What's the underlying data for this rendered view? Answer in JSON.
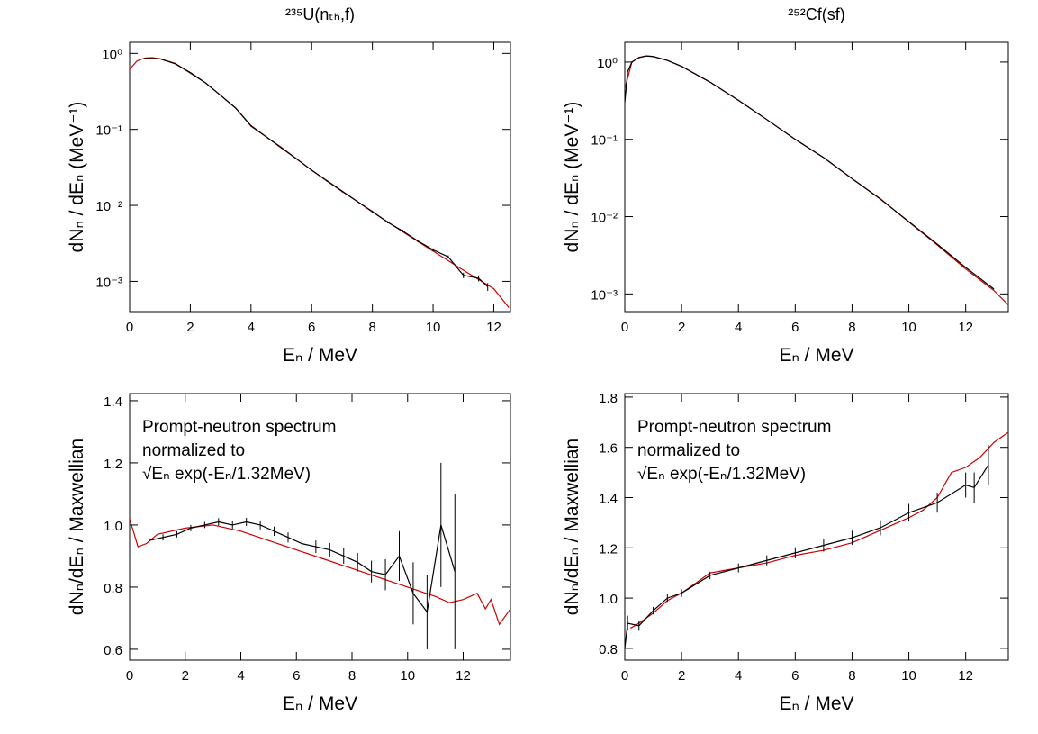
{
  "chart_data": [
    {
      "type": "line",
      "title": "²³⁵U(nₜₕ,f)",
      "xlabel": "Eₙ / MeV",
      "ylabel": "dNₙ / dEₙ (MeV⁻¹)",
      "log_y": true,
      "xlim": [
        0,
        12.55
      ],
      "xticks": [
        0,
        2,
        4,
        6,
        8,
        10,
        12
      ],
      "ylim": [
        0.0004,
        1.4
      ],
      "yticks": [
        {
          "value": 1,
          "label": "10⁰"
        },
        {
          "value": 0.1,
          "label": "10⁻¹"
        },
        {
          "value": 0.01,
          "label": "10⁻²"
        },
        {
          "value": 0.001,
          "label": "10⁻³"
        }
      ],
      "series": [
        {
          "color": "#cc0000",
          "x": [
            0,
            0.25,
            0.5,
            0.75,
            1,
            1.5,
            2,
            2.5,
            3,
            3.5,
            4,
            5,
            6,
            7,
            8,
            9,
            10,
            11,
            12,
            12.5
          ],
          "values": [
            0.62,
            0.8,
            0.87,
            0.88,
            0.85,
            0.74,
            0.55,
            0.41,
            0.28,
            0.19,
            0.11,
            0.058,
            0.029,
            0.0155,
            0.0082,
            0.0045,
            0.0025,
            0.0014,
            0.0008,
            0.00045
          ]
        },
        {
          "color": "#000000",
          "x": [
            0.5,
            1,
            1.5,
            2,
            2.5,
            3,
            3.5,
            4,
            4.5,
            5,
            5.5,
            6,
            6.5,
            7,
            7.5,
            8,
            8.5,
            9,
            9.5,
            10,
            10.5,
            11,
            11.5,
            11.8
          ],
          "values": [
            0.86,
            0.85,
            0.73,
            0.56,
            0.41,
            0.28,
            0.19,
            0.112,
            0.08,
            0.057,
            0.041,
            0.029,
            0.021,
            0.0153,
            0.0113,
            0.0083,
            0.006,
            0.0046,
            0.0034,
            0.0026,
            0.0021,
            0.0012,
            0.0011,
            0.00085
          ],
          "errors": [
            0.01,
            0.01,
            0.008,
            0.006,
            0.005,
            0.004,
            0.003,
            0.002,
            0.0015,
            0.0011,
            0.0008,
            0.0006,
            0.0005,
            0.0004,
            0.0003,
            0.00025,
            0.0002,
            0.00017,
            0.00014,
            0.00012,
            0.0001,
            0.0001,
            0.0001,
            0.0001
          ]
        }
      ]
    },
    {
      "type": "line",
      "title": "²⁵²Cf(sf)",
      "xlabel": "Eₙ / MeV",
      "ylabel": "dNₙ / dEₙ (MeV⁻¹)",
      "log_y": true,
      "xlim": [
        0,
        13.5
      ],
      "xticks": [
        0,
        2,
        4,
        6,
        8,
        10,
        12
      ],
      "ylim": [
        0.00059,
        1.8
      ],
      "yticks": [
        {
          "value": 1,
          "label": "10⁰"
        },
        {
          "value": 0.1,
          "label": "10⁻¹"
        },
        {
          "value": 0.01,
          "label": "10⁻²"
        },
        {
          "value": 0.001,
          "label": "10⁻³"
        }
      ],
      "series": [
        {
          "color": "#cc0000",
          "x": [
            0,
            0.25,
            0.5,
            0.75,
            1,
            1.5,
            2,
            3,
            4,
            5,
            6,
            7,
            8,
            9,
            10,
            11,
            12,
            13,
            13.5
          ],
          "values": [
            0.45,
            1.0,
            1.15,
            1.2,
            1.18,
            1.05,
            0.88,
            0.55,
            0.32,
            0.18,
            0.1,
            0.058,
            0.031,
            0.017,
            0.0085,
            0.0043,
            0.0021,
            0.0011,
            0.00072
          ]
        },
        {
          "color": "#000000",
          "x": [
            0,
            0.1,
            0.25,
            0.5,
            0.75,
            1,
            1.5,
            2,
            3,
            4,
            5,
            6,
            7,
            8,
            9,
            10,
            11,
            12,
            13
          ],
          "values": [
            0.3,
            0.75,
            1.0,
            1.14,
            1.2,
            1.18,
            1.05,
            0.88,
            0.55,
            0.32,
            0.18,
            0.1,
            0.058,
            0.031,
            0.0168,
            0.0086,
            0.0044,
            0.0022,
            0.00115
          ]
        }
      ]
    },
    {
      "type": "line",
      "xlabel": "Eₙ / MeV",
      "ylabel": "dNₙ/dEₙ / Maxwellian",
      "log_y": false,
      "annotation": [
        "Prompt-neutron spectrum",
        "normalized to",
        "√Eₙ exp(-Eₙ/1.32MeV)"
      ],
      "xlim": [
        0,
        13.7
      ],
      "xticks": [
        0,
        2,
        4,
        6,
        8,
        10,
        12
      ],
      "ylim": [
        0.565,
        1.423
      ],
      "yticks": [
        {
          "value": 0.6,
          "label": "0.6"
        },
        {
          "value": 0.8,
          "label": "0.8"
        },
        {
          "value": 1,
          "label": "1.0"
        },
        {
          "value": 1.2,
          "label": "1.2"
        },
        {
          "value": 1.4,
          "label": "1.4"
        }
      ],
      "series": [
        {
          "color": "#cc0000",
          "x": [
            0,
            0.3,
            0.6,
            1,
            2,
            3,
            4,
            5,
            6,
            7,
            8,
            9,
            10,
            11,
            11.5,
            12,
            12.5,
            12.8,
            13,
            13.3,
            13.7
          ],
          "values": [
            1.02,
            0.93,
            0.94,
            0.97,
            0.99,
            1.0,
            0.98,
            0.95,
            0.92,
            0.89,
            0.86,
            0.83,
            0.8,
            0.77,
            0.75,
            0.76,
            0.78,
            0.73,
            0.76,
            0.68,
            0.73
          ]
        },
        {
          "color": "#000000",
          "x": [
            0.7,
            1.2,
            1.7,
            2.2,
            2.7,
            3.2,
            3.7,
            4.2,
            4.7,
            5.2,
            5.7,
            6.2,
            6.7,
            7.2,
            7.7,
            8.2,
            8.7,
            9.2,
            9.7,
            10.2,
            10.7,
            11.2,
            11.7
          ],
          "values": [
            0.95,
            0.96,
            0.97,
            0.99,
            1.0,
            1.01,
            1.0,
            1.01,
            1.0,
            0.98,
            0.96,
            0.94,
            0.93,
            0.92,
            0.9,
            0.88,
            0.85,
            0.84,
            0.9,
            0.78,
            0.72,
            1.0,
            0.85
          ],
          "errors": [
            0.01,
            0.01,
            0.01,
            0.01,
            0.01,
            0.012,
            0.012,
            0.013,
            0.014,
            0.015,
            0.016,
            0.018,
            0.02,
            0.022,
            0.025,
            0.03,
            0.035,
            0.05,
            0.08,
            0.1,
            0.12,
            0.2,
            0.25
          ]
        }
      ]
    },
    {
      "type": "line",
      "xlabel": "Eₙ / MeV",
      "ylabel": "dNₙ/dEₙ / Maxwellian",
      "log_y": false,
      "annotation": [
        "Prompt-neutron spectrum",
        "normalized to",
        "√Eₙ exp(-Eₙ/1.32MeV)"
      ],
      "xlim": [
        0,
        13.5
      ],
      "xticks": [
        0,
        2,
        4,
        6,
        8,
        10,
        12
      ],
      "ylim": [
        0.753,
        1.814
      ],
      "yticks": [
        {
          "value": 0.8,
          "label": "0.8"
        },
        {
          "value": 1,
          "label": "1.0"
        },
        {
          "value": 1.2,
          "label": "1.2"
        },
        {
          "value": 1.4,
          "label": "1.4"
        },
        {
          "value": 1.6,
          "label": "1.6"
        },
        {
          "value": 1.8,
          "label": "1.8"
        }
      ],
      "series": [
        {
          "color": "#cc0000",
          "x": [
            0.2,
            0.5,
            1,
            1.5,
            2,
            2.5,
            3,
            3.5,
            4,
            5,
            6,
            7,
            8,
            9,
            10,
            10.5,
            11,
            11.5,
            12,
            12.5,
            13,
            13.5
          ],
          "values": [
            0.88,
            0.9,
            0.94,
            0.99,
            1.02,
            1.06,
            1.1,
            1.11,
            1.12,
            1.14,
            1.17,
            1.19,
            1.22,
            1.27,
            1.32,
            1.35,
            1.4,
            1.5,
            1.52,
            1.56,
            1.62,
            1.66
          ]
        },
        {
          "color": "#000000",
          "x": [
            0,
            0.1,
            0.5,
            1,
            1.5,
            2,
            3,
            4,
            5,
            6,
            7,
            8,
            9,
            10,
            11,
            12,
            12.3,
            12.8
          ],
          "values": [
            0.8,
            0.9,
            0.89,
            0.95,
            1.0,
            1.02,
            1.09,
            1.12,
            1.15,
            1.18,
            1.21,
            1.24,
            1.28,
            1.34,
            1.38,
            1.45,
            1.44,
            1.53
          ],
          "errors": [
            0.04,
            0.03,
            0.02,
            0.015,
            0.015,
            0.015,
            0.015,
            0.018,
            0.02,
            0.022,
            0.025,
            0.028,
            0.03,
            0.035,
            0.04,
            0.05,
            0.06,
            0.08
          ]
        }
      ]
    }
  ]
}
